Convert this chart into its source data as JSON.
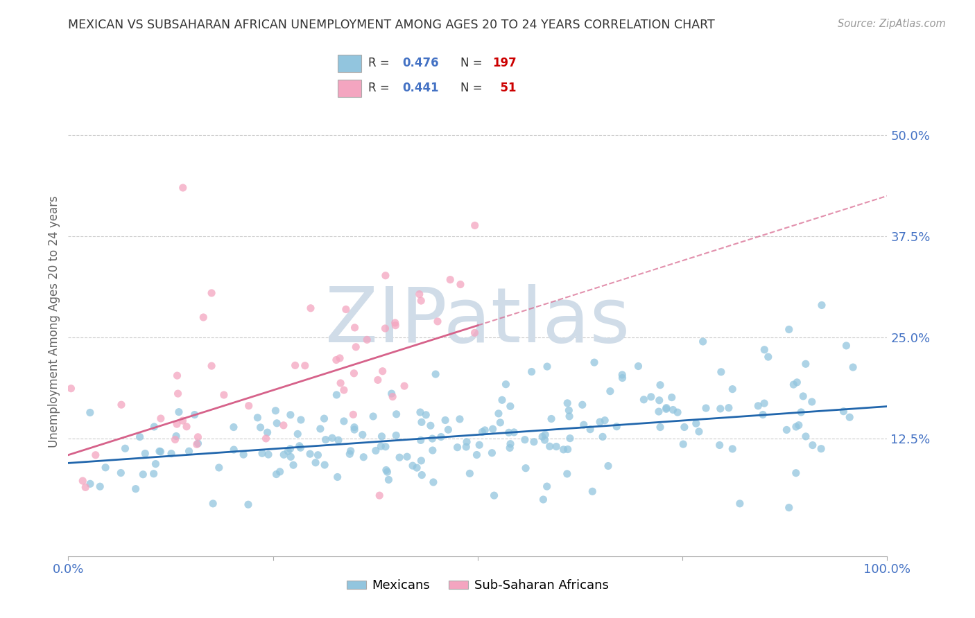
{
  "title": "MEXICAN VS SUBSAHARAN AFRICAN UNEMPLOYMENT AMONG AGES 20 TO 24 YEARS CORRELATION CHART",
  "source": "Source: ZipAtlas.com",
  "ylabel": "Unemployment Among Ages 20 to 24 years",
  "xlim": [
    0,
    1
  ],
  "ylim": [
    -0.02,
    0.56
  ],
  "blue_R": 0.476,
  "blue_N": 197,
  "pink_R": 0.441,
  "pink_N": 51,
  "blue_color": "#92c5de",
  "pink_color": "#f4a5c0",
  "blue_line_color": "#2166ac",
  "pink_line_color": "#d6628a",
  "watermark_color": "#d0dce8",
  "background_color": "#ffffff",
  "grid_color": "#cccccc",
  "title_color": "#333333",
  "axis_label_color": "#666666",
  "tick_label_color": "#4472c4",
  "legend_R_color": "#4472c4",
  "legend_N_color": "#cc0000",
  "ytick_vals": [
    0.125,
    0.25,
    0.375,
    0.5
  ],
  "ytick_labels": [
    "12.5%",
    "25.0%",
    "37.5%",
    "50.0%"
  ]
}
